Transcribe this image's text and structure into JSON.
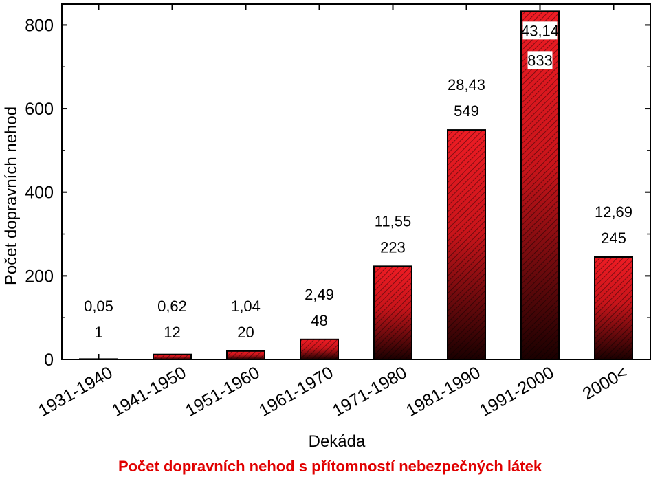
{
  "chart_data": {
    "type": "bar",
    "title": "",
    "xlabel": "Dekáda",
    "ylabel": "Počet dopravních nehod",
    "categories": [
      "1931-1940",
      "1941-1950",
      "1951-1960",
      "1961-1970",
      "1971-1980",
      "1981-1990",
      "1991-2000",
      "2000<"
    ],
    "values": [
      1,
      12,
      20,
      48,
      223,
      549,
      833,
      245
    ],
    "value_labels": [
      "1",
      "12",
      "20",
      "48",
      "223",
      "549",
      "833",
      "245"
    ],
    "percent_labels": [
      "0,05",
      "0,62",
      "1,04",
      "2,49",
      "11,55",
      "28,43",
      "43,14",
      "12,69"
    ],
    "ylim": [
      0,
      850
    ],
    "yticks": [
      0,
      200,
      400,
      600,
      800
    ],
    "grid": false,
    "legend": "none",
    "colors": {
      "bar_top": "#ee1c24",
      "bar_bottom": "#1a0000",
      "hatch": "#000000",
      "caption": "#e00000"
    }
  },
  "caption": "Počet dopravních nehod s přítomností nebezpečných látek"
}
